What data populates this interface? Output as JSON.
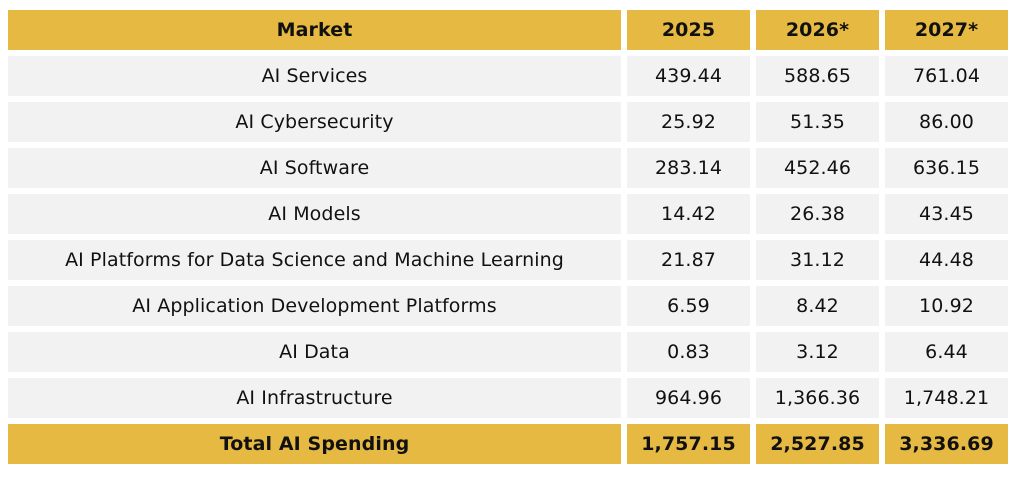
{
  "chart_data": {
    "type": "table",
    "columns": [
      "Market",
      "2025",
      "2026*",
      "2027*"
    ],
    "rows": [
      {
        "market": "AI Services",
        "v2025": "439.44",
        "v2026": "588.65",
        "v2027": "761.04"
      },
      {
        "market": "AI Cybersecurity",
        "v2025": "25.92",
        "v2026": "51.35",
        "v2027": "86.00"
      },
      {
        "market": "AI Software",
        "v2025": "283.14",
        "v2026": "452.46",
        "v2027": "636.15"
      },
      {
        "market": "AI Models",
        "v2025": "14.42",
        "v2026": "26.38",
        "v2027": "43.45"
      },
      {
        "market": "AI Platforms for Data Science and Machine Learning",
        "v2025": "21.87",
        "v2026": "31.12",
        "v2027": "44.48"
      },
      {
        "market": "AI Application Development Platforms",
        "v2025": "6.59",
        "v2026": "8.42",
        "v2027": "10.92"
      },
      {
        "market": "AI Data",
        "v2025": "0.83",
        "v2026": "3.12",
        "v2027": "6.44"
      },
      {
        "market": "AI Infrastructure",
        "v2025": "964.96",
        "v2026": "1,366.36",
        "v2027": "1,748.21"
      }
    ],
    "total": {
      "market": "Total AI Spending",
      "v2025": "1,757.15",
      "v2026": "2,527.85",
      "v2027": "3,336.69"
    }
  },
  "colors": {
    "header_bg": "#e6ba42",
    "row_bg": "#f2f2f2"
  }
}
